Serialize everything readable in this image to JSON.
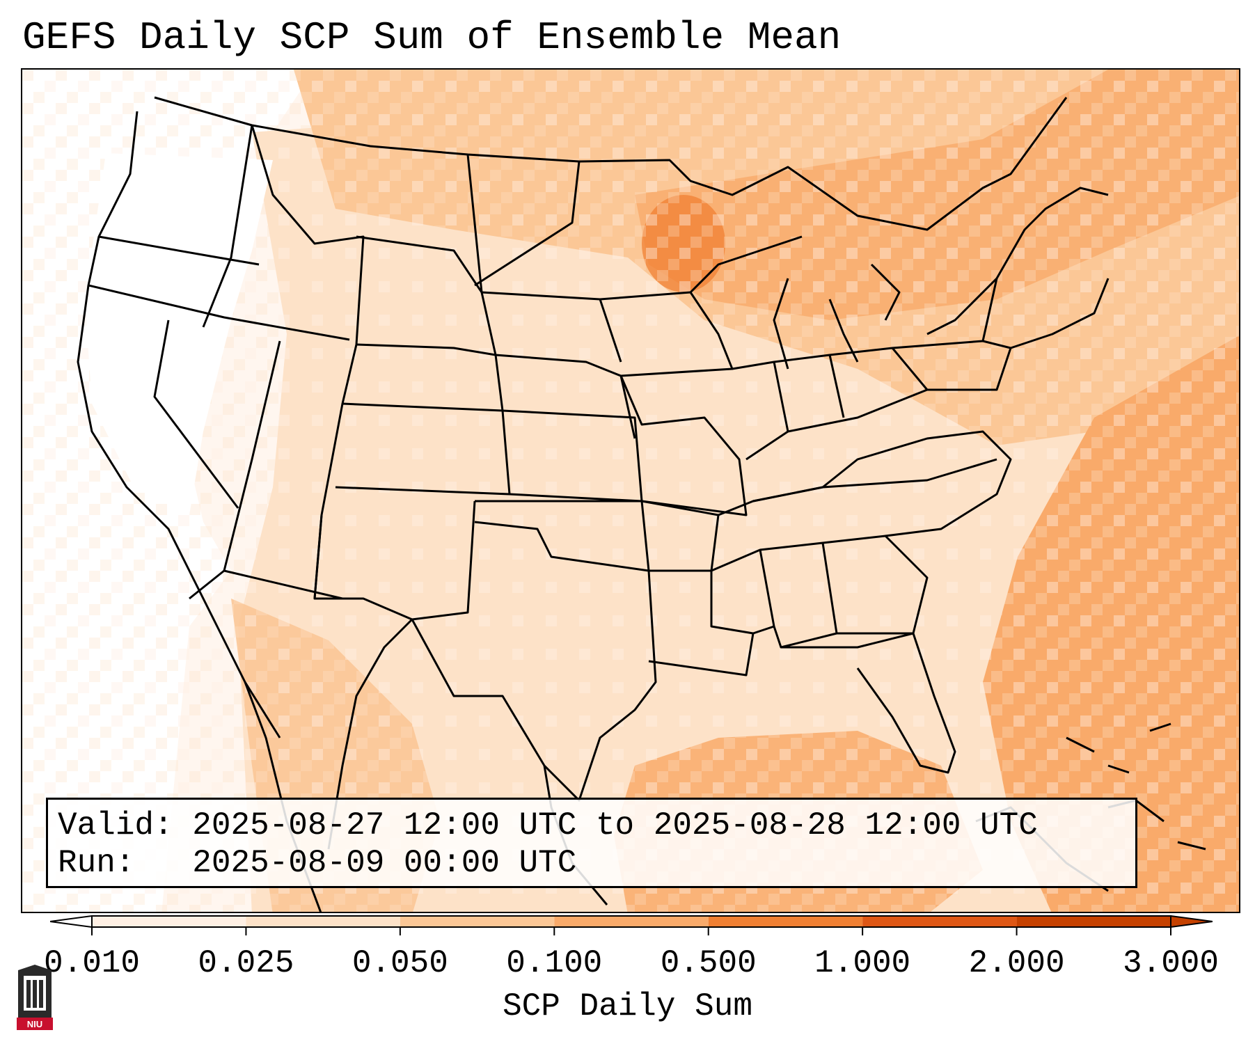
{
  "title": "GEFS Daily SCP Sum of Ensemble Mean",
  "info": {
    "valid_label": "Valid:",
    "valid_value": "2025-08-27 12:00 UTC to 2025-08-28 12:00 UTC",
    "run_label": "Run:",
    "run_value": "2025-08-09 00:00 UTC"
  },
  "colorbar": {
    "label": "SCP Daily Sum",
    "ticks": [
      "0.010",
      "0.025",
      "0.050",
      "0.100",
      "0.500",
      "1.000",
      "2.000",
      "3.000"
    ],
    "colors": [
      "#ffffff",
      "#fff0e4",
      "#fde2c8",
      "#fbc796",
      "#f9aa6a",
      "#f08033",
      "#de5715",
      "#c54100"
    ],
    "extend": "both"
  },
  "logo": {
    "text": "NIU"
  }
}
